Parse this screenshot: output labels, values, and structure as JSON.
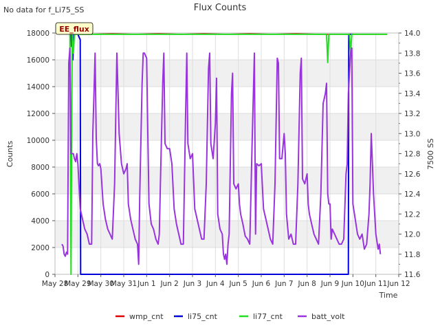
{
  "header": {
    "title": "Flux Counts",
    "nodata_note": "No data for f_Li75_SS",
    "badge_label": "EE_flux"
  },
  "colors": {
    "wmp_cnt": "#dd0000",
    "li75_cnt": "#0000dd",
    "li77_cnt": "#22dd22",
    "batt_volt": "#9933dd",
    "band": "#f0f0f0",
    "grid": "#dddddd",
    "badge_fill": "#ffffcc",
    "badge_text": "#990000"
  },
  "chart_data": {
    "type": "line",
    "title": "Flux Counts",
    "xlabel": "Time",
    "ylabel": "Counts",
    "y2label": "7500 SS",
    "ylim": [
      0,
      18000
    ],
    "y2lim": [
      11.6,
      14.0
    ],
    "xlim": [
      0,
      15
    ],
    "x_unit": "days since May 28",
    "xtick_labels": [
      "May 28",
      "May 29",
      "May 30",
      "May 31",
      "Jun 1",
      "Jun 2",
      "Jun 3",
      "Jun 4",
      "Jun 5",
      "Jun 6",
      "Jun 7",
      "Jun 8",
      "Jun 9",
      "Jun 10",
      "Jun 11",
      "Jun 12"
    ],
    "yticks": [
      0,
      2000,
      4000,
      6000,
      8000,
      10000,
      12000,
      14000,
      16000,
      18000
    ],
    "y2ticks": [
      11.6,
      11.8,
      12.0,
      12.2,
      12.4,
      12.6,
      12.8,
      13.0,
      13.2,
      13.4,
      13.6,
      13.8,
      14.0
    ],
    "grid": true,
    "legend_position": "bottom",
    "series": [
      {
        "name": "wmp_cnt",
        "axis": "left",
        "points": [
          [
            0.9,
            18000
          ],
          [
            1.5,
            17900
          ],
          [
            2.5,
            17950
          ],
          [
            3.5,
            17900
          ],
          [
            4.5,
            17950
          ],
          [
            5.5,
            17900
          ],
          [
            6.5,
            17950
          ],
          [
            7.5,
            17900
          ],
          [
            8.5,
            17950
          ],
          [
            9.5,
            17900
          ],
          [
            10.5,
            17950
          ],
          [
            11.5,
            17900
          ],
          [
            12.0,
            17900
          ],
          [
            12.5,
            17900
          ],
          [
            13.0,
            17900
          ],
          [
            13.5,
            17900
          ],
          [
            14.0,
            17900
          ],
          [
            14.5,
            17900
          ]
        ]
      },
      {
        "name": "li75_cnt",
        "axis": "left",
        "points": [
          [
            0.7,
            17900
          ],
          [
            0.72,
            17000
          ],
          [
            0.74,
            18000
          ],
          [
            0.78,
            16000
          ],
          [
            0.82,
            17900
          ],
          [
            0.86,
            17900
          ],
          [
            0.9,
            18000
          ],
          [
            1.0,
            17900
          ],
          [
            1.1,
            17500
          ],
          [
            1.12,
            0
          ],
          [
            12.8,
            0
          ],
          [
            12.82,
            17900
          ],
          [
            13.0,
            17900
          ]
        ]
      },
      {
        "name": "li77_cnt",
        "axis": "left",
        "points": [
          [
            0.65,
            17900
          ],
          [
            0.7,
            0
          ],
          [
            0.75,
            17900
          ],
          [
            0.8,
            16500
          ],
          [
            0.85,
            17900
          ],
          [
            1.0,
            17900
          ],
          [
            5.0,
            17900
          ],
          [
            10.0,
            17900
          ],
          [
            11.85,
            17900
          ],
          [
            11.9,
            15800
          ],
          [
            11.95,
            17900
          ],
          [
            12.85,
            17900
          ],
          [
            12.9,
            16500
          ],
          [
            12.95,
            17900
          ],
          [
            14.5,
            17900
          ]
        ]
      },
      {
        "name": "batt_volt",
        "axis": "right",
        "points": [
          [
            0.3,
            11.9
          ],
          [
            0.35,
            11.88
          ],
          [
            0.4,
            11.8
          ],
          [
            0.45,
            11.78
          ],
          [
            0.5,
            11.82
          ],
          [
            0.55,
            11.8
          ],
          [
            0.6,
            13.7
          ],
          [
            0.65,
            13.85
          ],
          [
            0.7,
            12.8
          ],
          [
            0.75,
            12.8
          ],
          [
            0.8,
            12.8
          ],
          [
            0.85,
            12.75
          ],
          [
            0.9,
            12.72
          ],
          [
            0.95,
            12.8
          ],
          [
            1.0,
            12.7
          ],
          [
            1.1,
            12.25
          ],
          [
            1.2,
            12.15
          ],
          [
            1.3,
            12.05
          ],
          [
            1.4,
            12.0
          ],
          [
            1.5,
            11.9
          ],
          [
            1.6,
            11.9
          ],
          [
            1.65,
            13.0
          ],
          [
            1.7,
            13.4
          ],
          [
            1.75,
            13.8
          ],
          [
            1.8,
            12.95
          ],
          [
            1.85,
            12.7
          ],
          [
            1.9,
            12.68
          ],
          [
            1.95,
            12.7
          ],
          [
            2.0,
            12.65
          ],
          [
            2.1,
            12.3
          ],
          [
            2.2,
            12.15
          ],
          [
            2.3,
            12.05
          ],
          [
            2.4,
            12.0
          ],
          [
            2.5,
            11.95
          ],
          [
            2.6,
            12.5
          ],
          [
            2.7,
            13.8
          ],
          [
            2.75,
            13.4
          ],
          [
            2.8,
            13.0
          ],
          [
            2.9,
            12.7
          ],
          [
            3.0,
            12.6
          ],
          [
            3.1,
            12.65
          ],
          [
            3.15,
            12.7
          ],
          [
            3.2,
            12.3
          ],
          [
            3.3,
            12.15
          ],
          [
            3.4,
            12.05
          ],
          [
            3.5,
            11.95
          ],
          [
            3.6,
            11.9
          ],
          [
            3.65,
            11.7
          ],
          [
            3.7,
            12.4
          ],
          [
            3.8,
            13.5
          ],
          [
            3.85,
            13.8
          ],
          [
            3.9,
            13.8
          ],
          [
            4.0,
            13.75
          ],
          [
            4.05,
            13.0
          ],
          [
            4.1,
            12.3
          ],
          [
            4.2,
            12.1
          ],
          [
            4.3,
            12.05
          ],
          [
            4.4,
            11.95
          ],
          [
            4.5,
            11.9
          ],
          [
            4.55,
            12.0
          ],
          [
            4.6,
            12.5
          ],
          [
            4.7,
            13.5
          ],
          [
            4.75,
            13.8
          ],
          [
            4.8,
            12.9
          ],
          [
            4.9,
            12.85
          ],
          [
            5.0,
            12.85
          ],
          [
            5.1,
            12.7
          ],
          [
            5.2,
            12.25
          ],
          [
            5.3,
            12.1
          ],
          [
            5.4,
            12.0
          ],
          [
            5.5,
            11.9
          ],
          [
            5.6,
            11.9
          ],
          [
            5.7,
            13.2
          ],
          [
            5.75,
            13.8
          ],
          [
            5.8,
            12.9
          ],
          [
            5.9,
            12.75
          ],
          [
            6.0,
            12.8
          ],
          [
            6.1,
            12.25
          ],
          [
            6.2,
            12.15
          ],
          [
            6.3,
            12.05
          ],
          [
            6.4,
            11.95
          ],
          [
            6.5,
            11.95
          ],
          [
            6.6,
            12.5
          ],
          [
            6.7,
            13.65
          ],
          [
            6.75,
            13.8
          ],
          [
            6.8,
            12.9
          ],
          [
            6.9,
            12.75
          ],
          [
            7.0,
            13.1
          ],
          [
            7.05,
            13.55
          ],
          [
            7.1,
            12.2
          ],
          [
            7.2,
            12.05
          ],
          [
            7.3,
            12.0
          ],
          [
            7.35,
            11.8
          ],
          [
            7.4,
            11.75
          ],
          [
            7.45,
            11.8
          ],
          [
            7.5,
            11.7
          ],
          [
            7.55,
            11.9
          ],
          [
            7.6,
            12.0
          ],
          [
            7.7,
            13.4
          ],
          [
            7.75,
            13.6
          ],
          [
            7.8,
            12.5
          ],
          [
            7.9,
            12.45
          ],
          [
            8.0,
            12.5
          ],
          [
            8.05,
            12.3
          ],
          [
            8.1,
            12.2
          ],
          [
            8.2,
            12.1
          ],
          [
            8.3,
            11.98
          ],
          [
            8.4,
            11.95
          ],
          [
            8.5,
            11.9
          ],
          [
            8.6,
            12.9
          ],
          [
            8.7,
            13.8
          ],
          [
            8.75,
            12.0
          ],
          [
            8.8,
            12.7
          ],
          [
            8.9,
            12.68
          ],
          [
            9.0,
            12.7
          ],
          [
            9.1,
            12.25
          ],
          [
            9.2,
            12.15
          ],
          [
            9.3,
            12.05
          ],
          [
            9.4,
            11.95
          ],
          [
            9.5,
            11.9
          ],
          [
            9.6,
            12.5
          ],
          [
            9.7,
            13.75
          ],
          [
            9.75,
            13.7
          ],
          [
            9.8,
            12.75
          ],
          [
            9.9,
            12.75
          ],
          [
            10.0,
            13.0
          ],
          [
            10.05,
            12.8
          ],
          [
            10.1,
            12.2
          ],
          [
            10.2,
            11.95
          ],
          [
            10.3,
            12.0
          ],
          [
            10.4,
            11.9
          ],
          [
            10.5,
            11.9
          ],
          [
            10.6,
            12.5
          ],
          [
            10.7,
            13.6
          ],
          [
            10.75,
            13.75
          ],
          [
            10.8,
            12.55
          ],
          [
            10.9,
            12.5
          ],
          [
            11.0,
            12.6
          ],
          [
            11.05,
            12.3
          ],
          [
            11.1,
            12.2
          ],
          [
            11.2,
            12.1
          ],
          [
            11.3,
            12.0
          ],
          [
            11.4,
            11.95
          ],
          [
            11.5,
            11.9
          ],
          [
            11.6,
            12.4
          ],
          [
            11.7,
            13.3
          ],
          [
            11.75,
            13.35
          ],
          [
            11.8,
            13.4
          ],
          [
            11.85,
            13.5
          ],
          [
            11.9,
            12.4
          ],
          [
            11.95,
            12.3
          ],
          [
            12.0,
            12.3
          ],
          [
            12.05,
            11.95
          ],
          [
            12.1,
            12.05
          ],
          [
            12.2,
            12.0
          ],
          [
            12.3,
            11.95
          ],
          [
            12.4,
            11.9
          ],
          [
            12.5,
            11.9
          ],
          [
            12.6,
            11.95
          ],
          [
            12.7,
            12.6
          ],
          [
            12.75,
            12.7
          ],
          [
            12.8,
            13.4
          ],
          [
            12.9,
            13.8
          ],
          [
            12.95,
            13.85
          ],
          [
            13.0,
            12.3
          ],
          [
            13.1,
            12.15
          ],
          [
            13.2,
            12.0
          ],
          [
            13.3,
            11.95
          ],
          [
            13.4,
            12.0
          ],
          [
            13.5,
            11.85
          ],
          [
            13.6,
            11.9
          ],
          [
            13.7,
            12.2
          ],
          [
            13.75,
            12.5
          ],
          [
            13.8,
            13.0
          ],
          [
            13.85,
            12.7
          ],
          [
            13.9,
            12.4
          ],
          [
            14.0,
            12.0
          ],
          [
            14.1,
            11.85
          ],
          [
            14.15,
            11.9
          ],
          [
            14.2,
            11.8
          ]
        ]
      }
    ]
  }
}
